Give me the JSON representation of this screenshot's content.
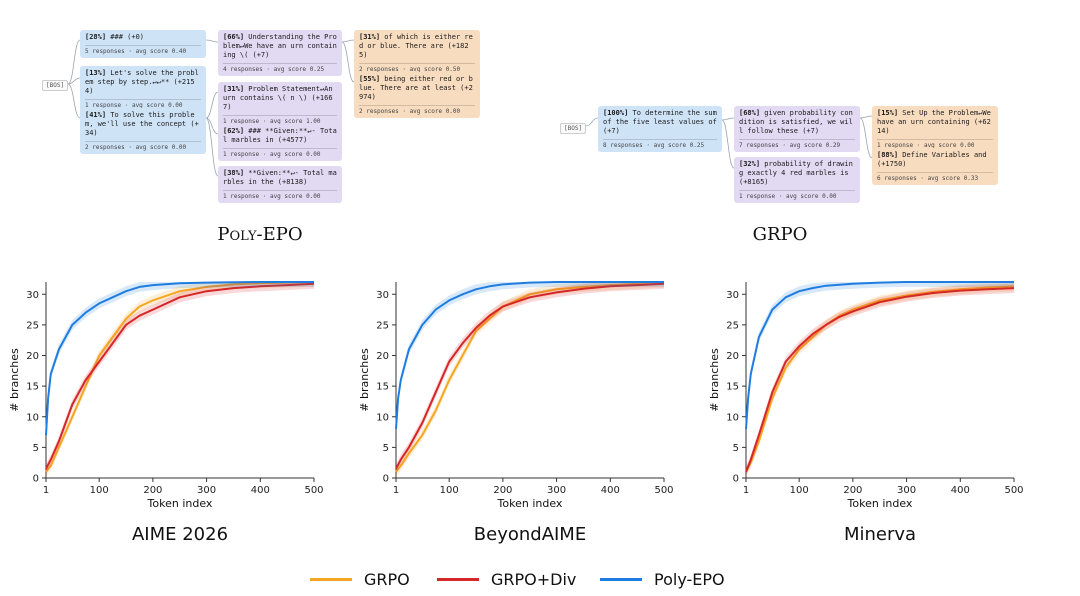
{
  "trees": {
    "poly": {
      "caption": "Poly-EPO",
      "bos": "[BOS]",
      "nodes": [
        {
          "pct": "[28%]",
          "text": "### (+0)",
          "meta": "5 responses · avg score 0.40"
        },
        {
          "pct": "[13%]",
          "text": "Let's solve the problem step by step.↵↵** (+2154)",
          "meta": "1 response · avg score 0.00"
        },
        {
          "pct": "[41%]",
          "text": "To solve this problem, we'll use the concept (+34)",
          "meta": "2 responses · avg score 0.00"
        },
        {
          "pct": "[66%]",
          "text": "Understanding the Problem↵We have an urn containing \\( (+7)",
          "meta": "4 responses · avg score 0.25"
        },
        {
          "pct": "[31%]",
          "text": "Problem Statement↵An urn contains \\( n \\) (+1667)",
          "meta": "1 response · avg score 1.00"
        },
        {
          "pct": "[62%]",
          "text": "### **Given:**↵- Total marbles in (+4577)",
          "meta": "1 response · avg score 0.00"
        },
        {
          "pct": "[38%]",
          "text": "**Given:**↵- Total marbles in the (+8138)",
          "meta": "1 response · avg score 0.00"
        },
        {
          "pct": "[31%]",
          "text": "of which is either red or blue. There are (+1825)",
          "meta": "2 responses · avg score 0.50"
        },
        {
          "pct": "[55%]",
          "text": "being either red or blue. There are at least (+2974)",
          "meta": "2 responses · avg score 0.00"
        }
      ]
    },
    "grpo": {
      "caption": "GRPO",
      "bos": "[BOS]",
      "nodes": [
        {
          "pct": "[100%]",
          "text": "To determine the sum of the five least values of (+7)",
          "meta": "8 responses · avg score 0.25"
        },
        {
          "pct": "[68%]",
          "text": "given probability condition is satisfied, we will follow these (+7)",
          "meta": "7 responses · avg score 0.29"
        },
        {
          "pct": "[32%]",
          "text": "probability of drawing exactly 4 red marbles is (+8165)",
          "meta": "1 response · avg score 0.00"
        },
        {
          "pct": "[15%]",
          "text": "Set Up the Problem↵We have an urn containing (+6214)",
          "meta": "1 response · avg score 0.00"
        },
        {
          "pct": "[88%]",
          "text": "Define Variables and (+1750)",
          "meta": "6 responses · avg score 0.33"
        }
      ]
    }
  },
  "chart_data": [
    {
      "type": "line",
      "title": "AIME 2026",
      "xlabel": "Token index",
      "ylabel": "# branches",
      "xlim": [
        1,
        500
      ],
      "ylim": [
        0,
        32
      ],
      "xticks": [
        1,
        100,
        200,
        300,
        400,
        500
      ],
      "yticks": [
        0,
        5,
        10,
        15,
        20,
        25,
        30
      ],
      "series": [
        {
          "name": "GRPO",
          "color": "#f5a623",
          "x": [
            1,
            10,
            25,
            50,
            75,
            100,
            125,
            150,
            175,
            200,
            250,
            300,
            350,
            400,
            450,
            500
          ],
          "y": [
            1,
            2,
            5,
            10,
            15,
            20,
            23,
            26,
            28,
            29,
            30.5,
            31.2,
            31.6,
            31.8,
            31.9,
            32
          ]
        },
        {
          "name": "GRPO+Div",
          "color": "#d62728",
          "x": [
            1,
            10,
            25,
            50,
            75,
            100,
            125,
            150,
            175,
            200,
            250,
            300,
            350,
            400,
            450,
            500
          ],
          "y": [
            1.5,
            3,
            6,
            12,
            16,
            19,
            22,
            25,
            26.5,
            27.5,
            29.5,
            30.5,
            31,
            31.3,
            31.5,
            31.7
          ]
        },
        {
          "name": "Poly-EPO",
          "color": "#1f7de0",
          "x": [
            1,
            5,
            10,
            25,
            50,
            75,
            100,
            125,
            150,
            175,
            200,
            250,
            300,
            400,
            500
          ],
          "y": [
            7,
            13,
            17,
            21,
            25,
            27,
            28.5,
            29.5,
            30.5,
            31.2,
            31.5,
            31.8,
            31.9,
            32,
            32
          ]
        }
      ]
    },
    {
      "type": "line",
      "title": "BeyondAIME",
      "xlabel": "Token index",
      "ylabel": "# branches",
      "xlim": [
        1,
        500
      ],
      "ylim": [
        0,
        32
      ],
      "xticks": [
        1,
        100,
        200,
        300,
        400,
        500
      ],
      "yticks": [
        0,
        5,
        10,
        15,
        20,
        25,
        30
      ],
      "series": [
        {
          "name": "GRPO",
          "color": "#f5a623",
          "x": [
            1,
            10,
            25,
            50,
            75,
            100,
            125,
            150,
            175,
            200,
            250,
            300,
            350,
            400,
            450,
            500
          ],
          "y": [
            1,
            2,
            4,
            7,
            11,
            16,
            20,
            24,
            26,
            28,
            30,
            30.8,
            31.2,
            31.5,
            31.7,
            31.9
          ]
        },
        {
          "name": "GRPO+Div",
          "color": "#d62728",
          "x": [
            1,
            10,
            25,
            50,
            75,
            100,
            125,
            150,
            175,
            200,
            250,
            300,
            350,
            400,
            450,
            500
          ],
          "y": [
            1.5,
            3,
            5,
            9,
            14,
            19,
            22,
            24.5,
            26.5,
            28,
            29.5,
            30.3,
            30.9,
            31.3,
            31.5,
            31.7
          ]
        },
        {
          "name": "Poly-EPO",
          "color": "#1f7de0",
          "x": [
            1,
            5,
            10,
            25,
            50,
            75,
            100,
            125,
            150,
            175,
            200,
            250,
            300,
            400,
            500
          ],
          "y": [
            8,
            13,
            16,
            21,
            25,
            27.5,
            29,
            30,
            30.8,
            31.3,
            31.6,
            31.9,
            32,
            32,
            32
          ]
        }
      ]
    },
    {
      "type": "line",
      "title": "Minerva",
      "xlabel": "Token index",
      "ylabel": "# branches",
      "xlim": [
        1,
        500
      ],
      "ylim": [
        0,
        32
      ],
      "xticks": [
        1,
        100,
        200,
        300,
        400,
        500
      ],
      "yticks": [
        0,
        5,
        10,
        15,
        20,
        25,
        30
      ],
      "series": [
        {
          "name": "GRPO",
          "color": "#f5a623",
          "x": [
            1,
            10,
            25,
            50,
            75,
            100,
            125,
            150,
            175,
            200,
            250,
            300,
            350,
            400,
            450,
            500
          ],
          "y": [
            1,
            2.5,
            6,
            13,
            18,
            21,
            23,
            25,
            26.5,
            27.5,
            29,
            29.8,
            30.4,
            30.8,
            31.1,
            31.3
          ]
        },
        {
          "name": "GRPO+Div",
          "color": "#d62728",
          "x": [
            1,
            10,
            25,
            50,
            75,
            100,
            125,
            150,
            175,
            200,
            250,
            300,
            350,
            400,
            450,
            500
          ],
          "y": [
            1,
            3,
            7,
            14,
            19,
            21.5,
            23.5,
            25,
            26.3,
            27.2,
            28.7,
            29.6,
            30.2,
            30.6,
            30.8,
            31
          ]
        },
        {
          "name": "Poly-EPO",
          "color": "#1f7de0",
          "x": [
            1,
            5,
            10,
            25,
            50,
            75,
            100,
            125,
            150,
            200,
            250,
            300,
            400,
            500
          ],
          "y": [
            8,
            13,
            17,
            23,
            27.5,
            29.5,
            30.5,
            31,
            31.4,
            31.7,
            31.9,
            32,
            32,
            32
          ]
        }
      ]
    }
  ],
  "legend": [
    {
      "label": "GRPO",
      "color": "#f5a623"
    },
    {
      "label": "GRPO+Div",
      "color": "#d62728"
    },
    {
      "label": "Poly-EPO",
      "color": "#1f7de0"
    }
  ]
}
